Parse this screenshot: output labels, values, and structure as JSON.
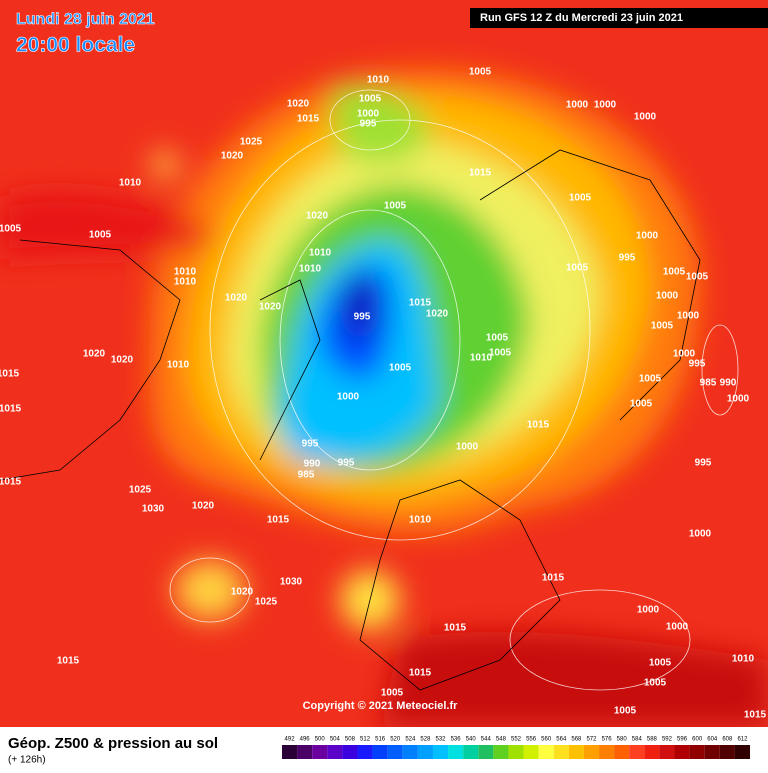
{
  "header": {
    "date": "Lundi 28 juin 2021",
    "time": "20:00 locale",
    "run": "Run GFS 12 Z du Mercredi 23 juin 2021"
  },
  "map": {
    "copyright": "Copyright © 2021 Meteociel.fr",
    "isobar_labels": [
      "1005",
      "1010",
      "1005",
      "1000",
      "995",
      "1020",
      "1015",
      "1025",
      "1020",
      "1010",
      "1005",
      "1005",
      "1010",
      "1010",
      "1020",
      "1020",
      "1020",
      "1010",
      "1015",
      "1015",
      "1015",
      "1025",
      "1030",
      "1020",
      "1015",
      "1010",
      "1000",
      "1015",
      "1005",
      "1000",
      "995",
      "995",
      "990",
      "985",
      "995",
      "1015",
      "1020",
      "1010",
      "1005",
      "1005",
      "1015",
      "1005",
      "1020",
      "1010",
      "1010",
      "1020",
      "1000",
      "1000",
      "1005",
      "1000",
      "995",
      "1005",
      "1005",
      "1005",
      "1000",
      "1000",
      "1005",
      "1000",
      "995",
      "985",
      "990",
      "1000",
      "1005",
      "1005",
      "995",
      "1000",
      "1015",
      "1030",
      "1020",
      "1025",
      "1015",
      "1000",
      "1000",
      "1005",
      "1010",
      "1005",
      "1005",
      "1015",
      "1015",
      "1005",
      "1015",
      "1000"
    ]
  },
  "legend": {
    "title": "Géop. Z500 & pression au sol",
    "subtitle": "(+ 126h)",
    "scale": {
      "values": [
        492,
        496,
        500,
        504,
        508,
        512,
        516,
        520,
        524,
        528,
        532,
        536,
        540,
        544,
        548,
        552,
        556,
        560,
        564,
        568,
        572,
        576,
        580,
        584,
        588,
        592,
        596,
        600,
        604,
        608,
        612
      ],
      "colors": [
        "#2a0036",
        "#4b0066",
        "#6a00a0",
        "#5a00c8",
        "#3a00e0",
        "#1a1aff",
        "#0040ff",
        "#0060ff",
        "#0080ff",
        "#00a0ff",
        "#00c0ff",
        "#00e0e0",
        "#00d0a0",
        "#20c060",
        "#60d020",
        "#a0e000",
        "#d0f000",
        "#ffff40",
        "#ffe020",
        "#ffc000",
        "#ffa000",
        "#ff8000",
        "#ff6000",
        "#ff4020",
        "#f02010",
        "#d01010",
        "#b00000",
        "#900000",
        "#700000",
        "#500000",
        "#300000"
      ]
    }
  }
}
